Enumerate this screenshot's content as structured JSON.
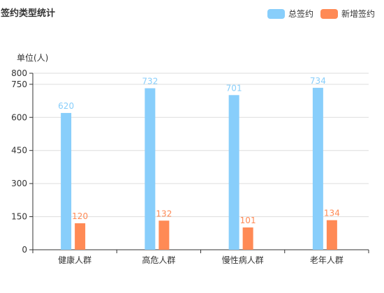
{
  "title": "签约类型统计",
  "colors": {
    "total": "#88cefb",
    "new": "#ff8a55",
    "axis": "#333333",
    "grid": "#dddddd",
    "text": "#333333"
  },
  "chart_data": {
    "type": "bar",
    "title": "签约类型统计",
    "unit_label": "单位(人)",
    "categories": [
      "健康人群",
      "高危人群",
      "慢性病人群",
      "老年人群"
    ],
    "series": [
      {
        "name": "总签约",
        "values": [
          620,
          732,
          701,
          734
        ]
      },
      {
        "name": "新增签约",
        "values": [
          120,
          132,
          101,
          134
        ]
      }
    ],
    "yticks": [
      0,
      150,
      300,
      450,
      600,
      750,
      800
    ],
    "ylim": [
      0,
      800
    ],
    "grid": true,
    "legend": "top-right",
    "data_labels": true
  }
}
